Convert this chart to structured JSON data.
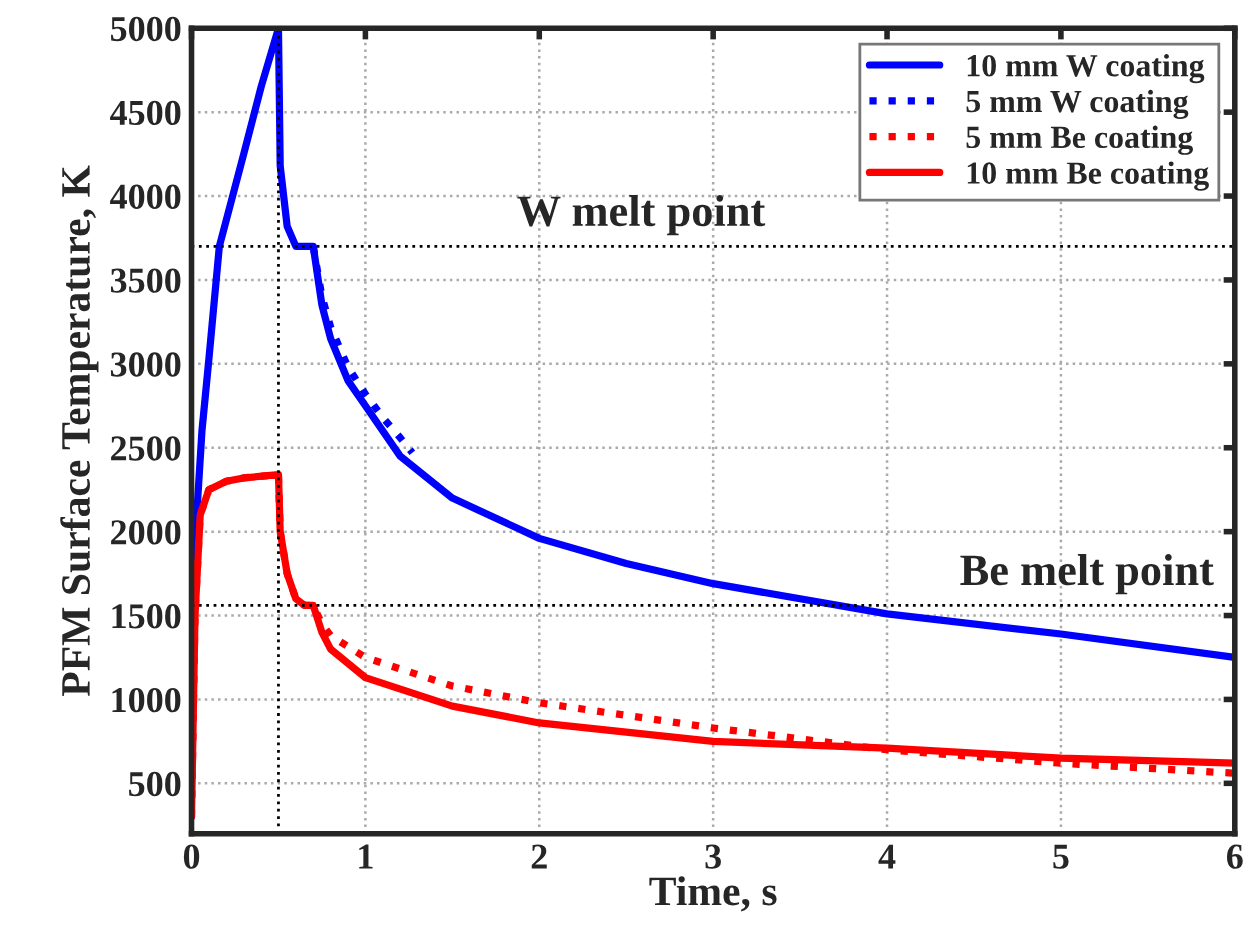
{
  "chart_data": {
    "type": "line",
    "xlabel": "Time, s",
    "ylabel": "PFM Surface Temperature, K",
    "xlim": [
      0,
      6
    ],
    "xticks": [
      0,
      1,
      2,
      3,
      4,
      5,
      6
    ],
    "ylim": [
      200,
      5000
    ],
    "yticks": [
      500,
      1000,
      1500,
      2000,
      2500,
      3000,
      3500,
      4000,
      4500,
      5000
    ],
    "grid": true,
    "legend": "top right",
    "series": [
      {
        "name": "10 mm W coating",
        "color": "#0000ff",
        "line_style": "solid",
        "x": [
          0.01,
          0.03,
          0.06,
          0.1,
          0.16,
          0.3,
          0.4,
          0.5,
          0.51,
          0.55,
          0.6,
          0.7,
          0.75,
          0.8,
          0.9,
          1.0,
          1.2,
          1.5,
          2,
          2.5,
          3,
          3.5,
          4,
          5,
          6
        ],
        "values": [
          1500,
          2100,
          2600,
          3030,
          3700,
          4250,
          4650,
          5000,
          4180,
          3820,
          3700,
          3700,
          3350,
          3150,
          2900,
          2750,
          2450,
          2200,
          1960,
          1810,
          1690,
          1600,
          1510,
          1390,
          1250
        ]
      },
      {
        "name": "5 mm W coating",
        "color": "#0000ff",
        "line_style": "dotted",
        "x": [
          0.7,
          0.75,
          0.8,
          0.9,
          1.0,
          1.1,
          1.2,
          1.27
        ],
        "values": [
          3700,
          3400,
          3220,
          2980,
          2820,
          2680,
          2560,
          2470
        ]
      },
      {
        "name": "5 mm Be coating",
        "color": "#ff0000",
        "line_style": "dotted",
        "x": [
          0,
          0.02,
          0.05,
          0.1,
          0.2,
          0.3,
          0.5,
          0.51,
          0.55,
          0.6,
          0.65,
          0.7,
          0.75,
          0.8,
          1.0,
          1.5,
          2,
          3,
          4,
          5,
          6
        ],
        "values": [
          300,
          1500,
          2100,
          2250,
          2300,
          2320,
          2340,
          2000,
          1750,
          1600,
          1560,
          1560,
          1450,
          1380,
          1250,
          1080,
          980,
          830,
          700,
          620,
          560
        ]
      },
      {
        "name": "10 mm Be coating",
        "color": "#ff0000",
        "line_style": "solid",
        "x": [
          0,
          0.02,
          0.05,
          0.1,
          0.2,
          0.3,
          0.5,
          0.51,
          0.55,
          0.6,
          0.65,
          0.7,
          0.75,
          0.8,
          1.0,
          1.5,
          2,
          3,
          4,
          5,
          6
        ],
        "values": [
          300,
          1500,
          2100,
          2250,
          2300,
          2320,
          2340,
          2000,
          1750,
          1600,
          1560,
          1560,
          1400,
          1300,
          1130,
          960,
          860,
          750,
          710,
          650,
          620
        ]
      }
    ],
    "ref_lines": [
      {
        "axis": "y",
        "value": 3700,
        "label": "W melt point",
        "color": "#000000",
        "line_style": "dotted"
      },
      {
        "axis": "y",
        "value": 1560,
        "label": "Be melt point",
        "color": "#000000",
        "line_style": "dotted"
      },
      {
        "axis": "x",
        "value": 0.5,
        "color": "#000000",
        "line_style": "dotted"
      }
    ]
  }
}
